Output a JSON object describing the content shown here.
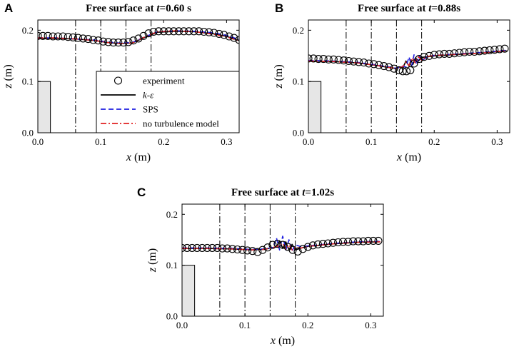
{
  "chart_data": [
    {
      "panel": "A",
      "type": "line",
      "title": {
        "prefix": "Free surface at ",
        "var": "t",
        "suffix": "=0.60 s"
      },
      "xlabel": {
        "var": "x",
        "unit": " (m)"
      },
      "ylabel": {
        "var": "z",
        "unit": " (m)"
      },
      "xlim": [
        0,
        0.32
      ],
      "ylim": [
        0,
        0.22
      ],
      "xticks": [
        0,
        0.1,
        0.2,
        0.3
      ],
      "xtick_labels": [
        "0.0",
        "0.1",
        "0.2",
        "0.3"
      ],
      "yticks": [
        0,
        0.1,
        0.2
      ],
      "ytick_labels": [
        "0.0",
        "0.1",
        "0.2"
      ],
      "vlines": [
        0.06,
        0.1,
        0.14,
        0.18
      ],
      "obstacle": {
        "x": [
          0,
          0.02
        ],
        "height": 0.1
      },
      "legend": {
        "position": "lower-right",
        "entries": [
          {
            "label": "experiment",
            "style": "circle"
          },
          {
            "label_parts": [
              {
                "text": "k",
                "italic": true
              },
              {
                "text": "-",
                "italic": false
              },
              {
                "text": "ε",
                "italic": true
              }
            ],
            "style": "solid"
          },
          {
            "label": "SPS",
            "style": "dashed"
          },
          {
            "label": "no turbulence model",
            "style": "dashdot"
          }
        ]
      },
      "series": [
        {
          "name": "experiment",
          "kind": "markers",
          "color": "#000000",
          "x": [
            0.0,
            0.008,
            0.016,
            0.024,
            0.032,
            0.04,
            0.048,
            0.056,
            0.064,
            0.072,
            0.08,
            0.088,
            0.096,
            0.104,
            0.112,
            0.12,
            0.128,
            0.136,
            0.144,
            0.152,
            0.16,
            0.168,
            0.176,
            0.184,
            0.192,
            0.2,
            0.208,
            0.216,
            0.224,
            0.232,
            0.24,
            0.248,
            0.256,
            0.264,
            0.272,
            0.28,
            0.288,
            0.296,
            0.304,
            0.312,
            0.32
          ],
          "y": [
            0.189,
            0.189,
            0.189,
            0.188,
            0.188,
            0.188,
            0.187,
            0.186,
            0.185,
            0.184,
            0.183,
            0.181,
            0.18,
            0.178,
            0.177,
            0.176,
            0.176,
            0.176,
            0.177,
            0.18,
            0.184,
            0.189,
            0.194,
            0.197,
            0.198,
            0.198,
            0.198,
            0.198,
            0.198,
            0.198,
            0.198,
            0.198,
            0.198,
            0.197,
            0.196,
            0.195,
            0.193,
            0.191,
            0.188,
            0.185,
            0.181
          ]
        },
        {
          "name": "k-epsilon",
          "kind": "solid",
          "color": "#000000",
          "x": [
            0,
            0.03,
            0.06,
            0.09,
            0.11,
            0.13,
            0.15,
            0.17,
            0.19,
            0.22,
            0.25,
            0.28,
            0.3,
            0.32
          ],
          "y": [
            0.184,
            0.184,
            0.183,
            0.18,
            0.176,
            0.174,
            0.175,
            0.186,
            0.196,
            0.198,
            0.197,
            0.193,
            0.188,
            0.18
          ]
        },
        {
          "name": "SPS",
          "kind": "dashed",
          "color": "#1f1fe0",
          "x": [
            0,
            0.03,
            0.06,
            0.09,
            0.11,
            0.13,
            0.15,
            0.17,
            0.19,
            0.22,
            0.25,
            0.28,
            0.3,
            0.32
          ],
          "y": [
            0.185,
            0.185,
            0.183,
            0.181,
            0.177,
            0.175,
            0.176,
            0.187,
            0.197,
            0.199,
            0.198,
            0.195,
            0.19,
            0.182
          ]
        },
        {
          "name": "no turbulence model",
          "kind": "dashdot",
          "color": "#e02020",
          "x": [
            0,
            0.03,
            0.06,
            0.09,
            0.11,
            0.13,
            0.15,
            0.17,
            0.19,
            0.22,
            0.25,
            0.28,
            0.3,
            0.32
          ],
          "y": [
            0.185,
            0.185,
            0.183,
            0.18,
            0.176,
            0.174,
            0.175,
            0.187,
            0.197,
            0.199,
            0.197,
            0.192,
            0.187,
            0.179
          ]
        }
      ]
    },
    {
      "panel": "B",
      "type": "line",
      "title": {
        "prefix": "Free surface at ",
        "var": "t",
        "suffix": "=0.88s"
      },
      "xlabel": {
        "var": "x",
        "unit": " (m)"
      },
      "ylabel": {
        "var": "z",
        "unit": " (m)"
      },
      "xlim": [
        0,
        0.32
      ],
      "ylim": [
        0,
        0.22
      ],
      "xticks": [
        0,
        0.1,
        0.2,
        0.3
      ],
      "xtick_labels": [
        "0.0",
        "0.1",
        "0.2",
        "0.3"
      ],
      "yticks": [
        0,
        0.1,
        0.2
      ],
      "ytick_labels": [
        "0.0",
        "0.1",
        "0.2"
      ],
      "vlines": [
        0.06,
        0.1,
        0.14,
        0.18
      ],
      "obstacle": {
        "x": [
          0,
          0.02
        ],
        "height": 0.1
      },
      "series": [
        {
          "name": "experiment",
          "kind": "markers",
          "color": "#000000",
          "x": [
            0.0,
            0.008,
            0.016,
            0.024,
            0.032,
            0.04,
            0.048,
            0.056,
            0.064,
            0.072,
            0.08,
            0.088,
            0.096,
            0.104,
            0.112,
            0.12,
            0.128,
            0.136,
            0.144,
            0.15,
            0.156,
            0.162,
            0.168,
            0.176,
            0.184,
            0.192,
            0.2,
            0.208,
            0.216,
            0.224,
            0.232,
            0.24,
            0.248,
            0.256,
            0.264,
            0.272,
            0.28,
            0.288,
            0.296,
            0.304,
            0.312
          ],
          "y": [
            0.145,
            0.145,
            0.144,
            0.144,
            0.143,
            0.143,
            0.142,
            0.141,
            0.14,
            0.139,
            0.138,
            0.137,
            0.135,
            0.134,
            0.132,
            0.13,
            0.128,
            0.125,
            0.122,
            0.12,
            0.12,
            0.122,
            0.135,
            0.144,
            0.148,
            0.15,
            0.152,
            0.153,
            0.154,
            0.154,
            0.155,
            0.156,
            0.157,
            0.158,
            0.158,
            0.159,
            0.16,
            0.161,
            0.162,
            0.163,
            0.164
          ]
        },
        {
          "name": "k-epsilon",
          "kind": "solid",
          "color": "#000000",
          "x": [
            0,
            0.04,
            0.08,
            0.11,
            0.13,
            0.14,
            0.145,
            0.15,
            0.155,
            0.16,
            0.163,
            0.166,
            0.17,
            0.175,
            0.18,
            0.2,
            0.24,
            0.28,
            0.315
          ],
          "y": [
            0.14,
            0.139,
            0.136,
            0.131,
            0.127,
            0.125,
            0.128,
            0.126,
            0.14,
            0.13,
            0.142,
            0.133,
            0.146,
            0.14,
            0.147,
            0.15,
            0.153,
            0.156,
            0.16
          ]
        },
        {
          "name": "SPS",
          "kind": "dashed",
          "color": "#1f1fe0",
          "x": [
            0,
            0.04,
            0.08,
            0.11,
            0.13,
            0.14,
            0.15,
            0.155,
            0.16,
            0.164,
            0.168,
            0.172,
            0.176,
            0.18,
            0.19,
            0.2,
            0.24,
            0.28,
            0.315
          ],
          "y": [
            0.141,
            0.14,
            0.137,
            0.132,
            0.128,
            0.126,
            0.13,
            0.128,
            0.148,
            0.13,
            0.152,
            0.133,
            0.15,
            0.14,
            0.149,
            0.151,
            0.154,
            0.157,
            0.161
          ]
        },
        {
          "name": "no turbulence model",
          "kind": "dashdot",
          "color": "#e02020",
          "x": [
            0,
            0.04,
            0.08,
            0.11,
            0.13,
            0.14,
            0.15,
            0.155,
            0.16,
            0.165,
            0.17,
            0.175,
            0.18,
            0.19,
            0.2,
            0.24,
            0.28,
            0.315
          ],
          "y": [
            0.14,
            0.139,
            0.136,
            0.131,
            0.127,
            0.126,
            0.129,
            0.138,
            0.131,
            0.146,
            0.136,
            0.148,
            0.142,
            0.149,
            0.151,
            0.153,
            0.156,
            0.16
          ]
        }
      ]
    },
    {
      "panel": "C",
      "type": "line",
      "title": {
        "prefix": "Free surface at ",
        "var": "t",
        "suffix": "=1.02s"
      },
      "xlabel": {
        "var": "x",
        "unit": " (m)"
      },
      "ylabel": {
        "var": "z",
        "unit": " (m)"
      },
      "xlim": [
        0,
        0.32
      ],
      "ylim": [
        0,
        0.22
      ],
      "xticks": [
        0,
        0.1,
        0.2,
        0.3
      ],
      "xtick_labels": [
        "0.0",
        "0.1",
        "0.2",
        "0.3"
      ],
      "yticks": [
        0,
        0.1,
        0.2
      ],
      "ytick_labels": [
        "0.0",
        "0.1",
        "0.2"
      ],
      "vlines": [
        0.06,
        0.1,
        0.14,
        0.18
      ],
      "obstacle": {
        "x": [
          0,
          0.02
        ],
        "height": 0.1
      },
      "series": [
        {
          "name": "experiment",
          "kind": "markers",
          "color": "#000000",
          "x": [
            0.0,
            0.008,
            0.016,
            0.024,
            0.032,
            0.04,
            0.048,
            0.056,
            0.064,
            0.072,
            0.08,
            0.088,
            0.096,
            0.104,
            0.112,
            0.12,
            0.128,
            0.136,
            0.144,
            0.152,
            0.16,
            0.168,
            0.176,
            0.184,
            0.192,
            0.2,
            0.208,
            0.216,
            0.224,
            0.232,
            0.24,
            0.248,
            0.256,
            0.264,
            0.272,
            0.28,
            0.288,
            0.296,
            0.304,
            0.312
          ],
          "y": [
            0.134,
            0.134,
            0.134,
            0.134,
            0.134,
            0.134,
            0.134,
            0.134,
            0.133,
            0.133,
            0.132,
            0.131,
            0.13,
            0.129,
            0.128,
            0.126,
            0.13,
            0.135,
            0.14,
            0.142,
            0.14,
            0.136,
            0.13,
            0.127,
            0.132,
            0.136,
            0.139,
            0.141,
            0.142,
            0.143,
            0.144,
            0.145,
            0.146,
            0.146,
            0.147,
            0.147,
            0.147,
            0.148,
            0.148,
            0.148
          ]
        },
        {
          "name": "k-epsilon",
          "kind": "solid",
          "color": "#000000",
          "x": [
            0,
            0.04,
            0.08,
            0.11,
            0.13,
            0.15,
            0.155,
            0.16,
            0.165,
            0.17,
            0.175,
            0.18,
            0.19,
            0.2,
            0.24,
            0.28,
            0.315
          ],
          "y": [
            0.133,
            0.133,
            0.132,
            0.13,
            0.131,
            0.136,
            0.148,
            0.133,
            0.146,
            0.13,
            0.141,
            0.13,
            0.134,
            0.137,
            0.142,
            0.145,
            0.146
          ]
        },
        {
          "name": "SPS",
          "kind": "dashed",
          "color": "#1f1fe0",
          "x": [
            0,
            0.04,
            0.08,
            0.11,
            0.13,
            0.145,
            0.15,
            0.155,
            0.16,
            0.165,
            0.17,
            0.175,
            0.18,
            0.19,
            0.2,
            0.24,
            0.28,
            0.315
          ],
          "y": [
            0.134,
            0.134,
            0.133,
            0.131,
            0.132,
            0.135,
            0.154,
            0.13,
            0.157,
            0.13,
            0.15,
            0.128,
            0.14,
            0.136,
            0.138,
            0.143,
            0.146,
            0.147
          ]
        },
        {
          "name": "no turbulence model",
          "kind": "dashdot",
          "color": "#e02020",
          "x": [
            0,
            0.04,
            0.08,
            0.11,
            0.13,
            0.15,
            0.16,
            0.165,
            0.17,
            0.175,
            0.18,
            0.19,
            0.2,
            0.24,
            0.28,
            0.315
          ],
          "y": [
            0.133,
            0.133,
            0.132,
            0.13,
            0.131,
            0.136,
            0.143,
            0.132,
            0.14,
            0.13,
            0.135,
            0.134,
            0.137,
            0.142,
            0.145,
            0.146
          ]
        }
      ]
    }
  ]
}
